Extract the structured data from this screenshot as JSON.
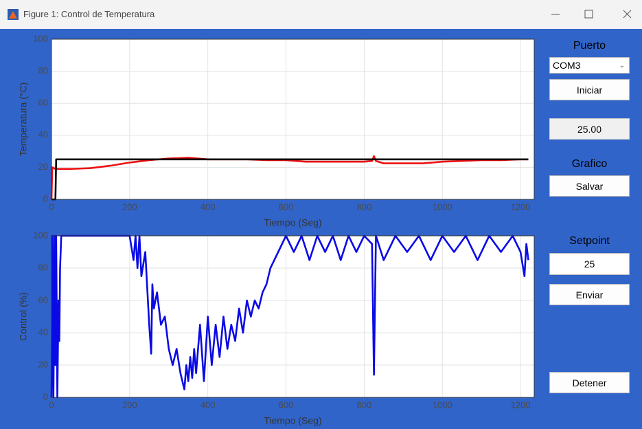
{
  "window": {
    "title": "Figure 1: Control de Temperatura"
  },
  "controls": {
    "port_label": "Puerto",
    "port_value": "COM3",
    "start_button": "Iniciar",
    "reading": "25.00",
    "graph_label": "Grafico",
    "save_button": "Salvar",
    "setpoint_label": "Setpoint",
    "setpoint_value": "25",
    "send_button": "Enviar",
    "stop_button": "Detener"
  },
  "chart_data": [
    {
      "type": "line",
      "xlabel": "Tiempo (Seg)",
      "ylabel": "Temperatura (°C)",
      "xlim": [
        0,
        1235
      ],
      "xticks": [
        0,
        200,
        400,
        600,
        800,
        1000,
        1200
      ],
      "ylim": [
        0,
        100
      ],
      "yticks": [
        0,
        20,
        40,
        60,
        80,
        100
      ],
      "grid": true,
      "x": [
        0,
        2,
        10,
        12,
        50,
        100,
        150,
        200,
        250,
        300,
        350,
        400,
        450,
        500,
        550,
        600,
        650,
        700,
        750,
        800,
        820,
        825,
        830,
        850,
        900,
        950,
        1000,
        1050,
        1100,
        1150,
        1200,
        1220
      ],
      "series": [
        {
          "name": "Temperatura",
          "color": "#ee1111",
          "values": [
            0,
            20,
            19,
            19,
            19,
            19.5,
            21,
            23,
            24.5,
            25.5,
            26,
            25,
            25,
            25,
            24.5,
            24.5,
            23.5,
            23.5,
            23.5,
            23.5,
            24,
            27,
            24,
            22.5,
            22.5,
            22.5,
            23.5,
            24,
            24.5,
            24.5,
            25,
            25
          ]
        },
        {
          "name": "Setpoint",
          "color": "#000000",
          "values": [
            0,
            0,
            0,
            25,
            25,
            25,
            25,
            25,
            25,
            25,
            25,
            25,
            25,
            25,
            25,
            25,
            25,
            25,
            25,
            25,
            25,
            25,
            25,
            25,
            25,
            25,
            25,
            25,
            25,
            25,
            25,
            25
          ]
        }
      ]
    },
    {
      "type": "line",
      "xlabel": "Tiempo (Seg)",
      "ylabel": "Control (%)",
      "xlim": [
        0,
        1235
      ],
      "xticks": [
        0,
        200,
        400,
        600,
        800,
        1000,
        1200
      ],
      "ylim": [
        0,
        100
      ],
      "yticks": [
        0,
        20,
        40,
        60,
        80,
        100
      ],
      "grid": true,
      "x": [
        0,
        3,
        5,
        8,
        10,
        12,
        15,
        18,
        20,
        22,
        25,
        30,
        35,
        40,
        60,
        100,
        150,
        200,
        210,
        215,
        220,
        225,
        230,
        240,
        250,
        255,
        258,
        262,
        270,
        280,
        290,
        300,
        310,
        320,
        330,
        340,
        345,
        350,
        355,
        360,
        365,
        370,
        380,
        390,
        400,
        410,
        420,
        430,
        440,
        450,
        460,
        470,
        480,
        490,
        500,
        510,
        520,
        530,
        540,
        550,
        560,
        580,
        600,
        620,
        640,
        660,
        680,
        700,
        720,
        740,
        760,
        780,
        800,
        820,
        825,
        830,
        850,
        880,
        910,
        940,
        970,
        1000,
        1030,
        1060,
        1090,
        1120,
        1150,
        1180,
        1200,
        1210,
        1215,
        1220
      ],
      "series": [
        {
          "name": "Control",
          "color": "#0a0ae6",
          "values": [
            0,
            100,
            0,
            100,
            20,
            100,
            0,
            60,
            35,
            80,
            100,
            100,
            100,
            100,
            100,
            100,
            100,
            100,
            85,
            100,
            80,
            100,
            75,
            90,
            45,
            27,
            70,
            55,
            65,
            45,
            50,
            30,
            20,
            30,
            15,
            5,
            20,
            10,
            25,
            12,
            30,
            15,
            45,
            10,
            50,
            20,
            45,
            25,
            50,
            30,
            45,
            35,
            55,
            40,
            60,
            50,
            60,
            55,
            65,
            70,
            80,
            90,
            100,
            90,
            100,
            85,
            100,
            90,
            100,
            85,
            100,
            90,
            100,
            95,
            14,
            100,
            85,
            100,
            90,
            100,
            85,
            100,
            90,
            100,
            85,
            100,
            90,
            100,
            90,
            75,
            95,
            85
          ]
        }
      ]
    }
  ]
}
